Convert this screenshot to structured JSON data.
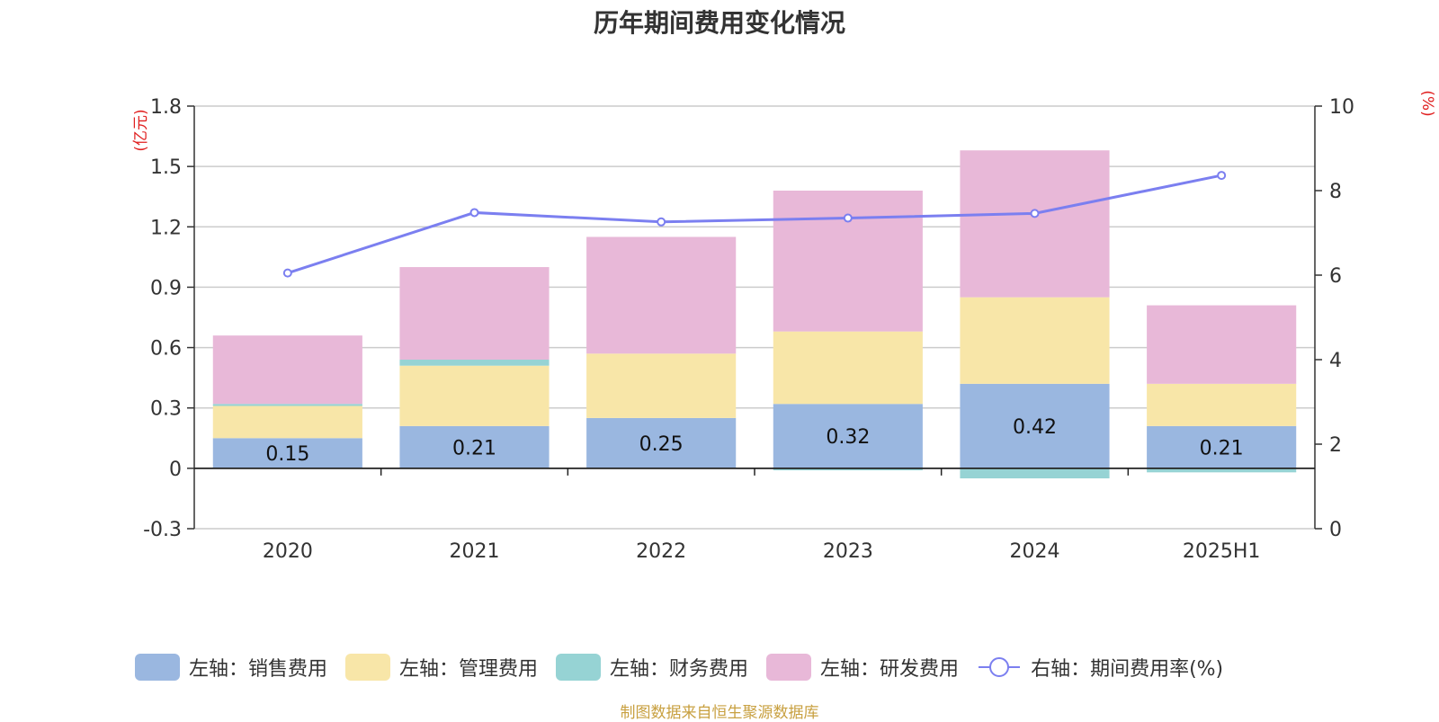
{
  "chart_data": {
    "type": "bar",
    "title": "历年期间费用变化情况",
    "categories": [
      "2020",
      "2021",
      "2022",
      "2023",
      "2024",
      "2025H1"
    ],
    "left_axis": {
      "unit": "(亿元)",
      "ylim": [
        -0.3,
        1.8
      ],
      "ticks": [
        -0.3,
        0,
        0.3,
        0.6,
        0.9,
        1.2,
        1.5,
        1.8
      ],
      "tick_labels": [
        "-0.3",
        "0",
        "0.3",
        "0.6",
        "0.9",
        "1.2",
        "1.5",
        "1.8"
      ]
    },
    "right_axis": {
      "unit": "(%)",
      "ylim": [
        0,
        10
      ],
      "ticks": [
        0,
        2,
        4,
        6,
        8,
        10
      ],
      "tick_labels": [
        "0",
        "2",
        "4",
        "6",
        "8",
        "10"
      ]
    },
    "series": [
      {
        "name": "左轴：销售费用",
        "kind": "bar",
        "axis": "left",
        "color": "#9ab7e0",
        "values": [
          0.15,
          0.21,
          0.25,
          0.32,
          0.42,
          0.21
        ],
        "data_labels": [
          "0.15",
          "0.21",
          "0.25",
          "0.32",
          "0.42",
          "0.21"
        ]
      },
      {
        "name": "左轴：管理费用",
        "kind": "bar",
        "axis": "left",
        "color": "#f8e6a8",
        "values": [
          0.16,
          0.3,
          0.32,
          0.36,
          0.43,
          0.21
        ]
      },
      {
        "name": "左轴：财务费用",
        "kind": "bar",
        "axis": "left",
        "color": "#96d3d4",
        "values": [
          0.01,
          0.03,
          0.0,
          -0.01,
          -0.05,
          -0.02
        ]
      },
      {
        "name": "左轴：研发费用",
        "kind": "bar",
        "axis": "left",
        "color": "#e8b8d8",
        "values": [
          0.34,
          0.46,
          0.58,
          0.7,
          0.73,
          0.39
        ]
      },
      {
        "name": "右轴：期间费用率(%)",
        "kind": "line",
        "axis": "right",
        "color": "#7b7ff0",
        "values": [
          6.05,
          7.48,
          7.26,
          7.35,
          7.46,
          8.36
        ]
      }
    ],
    "grid": true,
    "legend_position": "bottom"
  },
  "source_note": "制图数据来自恒生聚源数据库"
}
